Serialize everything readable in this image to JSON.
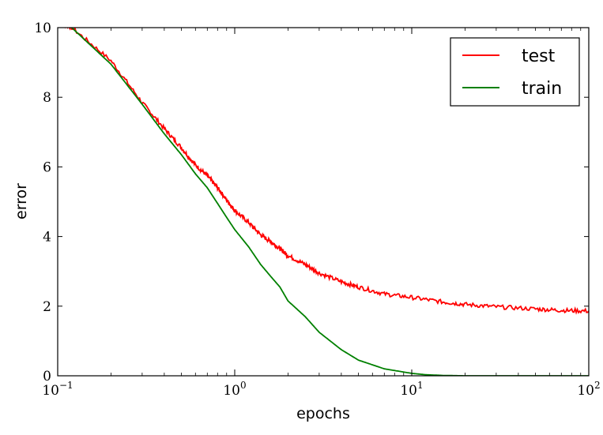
{
  "chart_data": {
    "type": "line",
    "xlabel": "epochs",
    "ylabel": "error",
    "xscale": "log",
    "xlim": [
      0.1,
      100
    ],
    "ylim": [
      0,
      10
    ],
    "x_ticks": [
      {
        "value": 0.1,
        "base": "10",
        "exp": "−1"
      },
      {
        "value": 1,
        "base": "10",
        "exp": "0"
      },
      {
        "value": 10,
        "base": "10",
        "exp": "1"
      },
      {
        "value": 100,
        "base": "10",
        "exp": "2"
      }
    ],
    "y_ticks": [
      0,
      2,
      4,
      6,
      8,
      10
    ],
    "grid": false,
    "legend": {
      "placement": "top-right"
    },
    "series": [
      {
        "name": "test",
        "color": "#ff0000",
        "noise": 0.06,
        "x": [
          0.1,
          0.12,
          0.2,
          0.3,
          0.4,
          0.5,
          0.6,
          0.7,
          0.8,
          0.9,
          1.0,
          1.2,
          1.4,
          1.6,
          1.8,
          2.0,
          2.5,
          3.0,
          4.0,
          5.0,
          7.0,
          10,
          15,
          20,
          30,
          50,
          70,
          100
        ],
        "y": [
          10.2,
          10.0,
          9.05,
          7.85,
          7.1,
          6.55,
          6.05,
          5.75,
          5.4,
          5.05,
          4.75,
          4.4,
          4.05,
          3.85,
          3.65,
          3.45,
          3.2,
          2.95,
          2.7,
          2.55,
          2.35,
          2.25,
          2.12,
          2.05,
          1.98,
          1.92,
          1.88,
          1.86
        ]
      },
      {
        "name": "train",
        "color": "#008000",
        "noise": 0.0,
        "x": [
          0.1,
          0.12,
          0.2,
          0.3,
          0.4,
          0.5,
          0.6,
          0.7,
          0.8,
          0.9,
          1.0,
          1.2,
          1.4,
          1.6,
          1.8,
          2.0,
          2.5,
          3.0,
          4.0,
          5.0,
          7.0,
          10,
          12,
          15,
          20,
          30,
          50,
          100
        ],
        "y": [
          10.2,
          10.0,
          8.95,
          7.8,
          6.95,
          6.35,
          5.8,
          5.4,
          4.95,
          4.55,
          4.2,
          3.7,
          3.2,
          2.85,
          2.55,
          2.15,
          1.7,
          1.25,
          0.75,
          0.45,
          0.2,
          0.07,
          0.03,
          0.01,
          0.0,
          0.0,
          0.0,
          0.0
        ]
      }
    ]
  }
}
